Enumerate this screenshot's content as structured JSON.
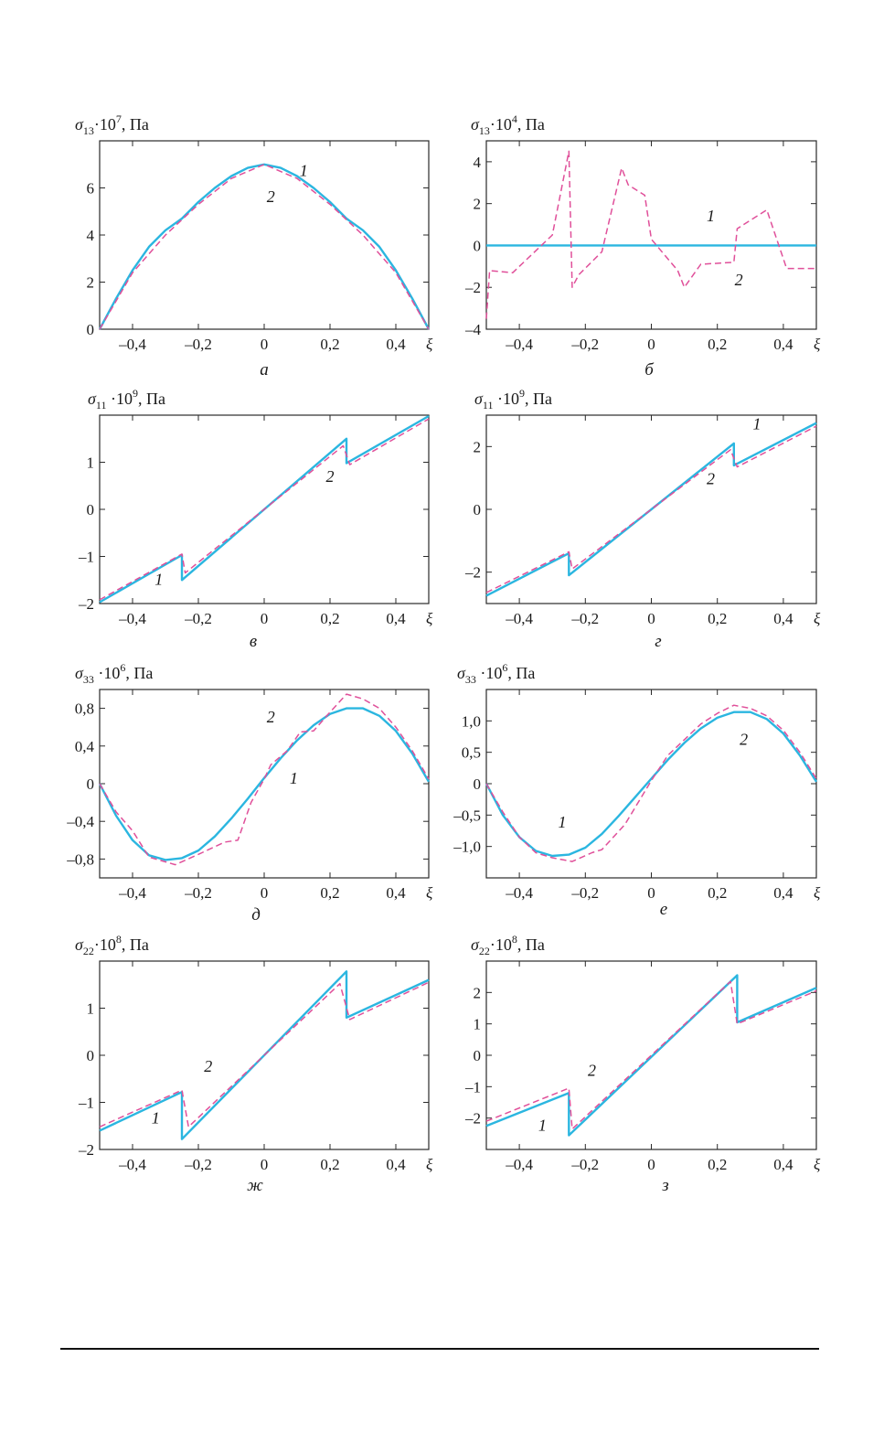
{
  "colors": {
    "series1": "#2bb6e0",
    "series2": "#e0509a",
    "axis": "#2a2a2a"
  },
  "chart_data": [
    {
      "id": "a",
      "type": "line",
      "caption": "а",
      "ylabel": {
        "sym": "σ",
        "sub": "13",
        "pow": "·10",
        "exp": "7",
        "unit": ", Па"
      },
      "xlabel": "ξ",
      "xlim": [
        -0.5,
        0.5
      ],
      "ylim": [
        0,
        8
      ],
      "xticks": [
        -0.4,
        -0.2,
        0,
        0.2,
        0.4
      ],
      "xtick_labels": [
        "–0,4",
        "–0,2",
        "0",
        "0,2",
        "0,4"
      ],
      "yticks": [
        0,
        2,
        4,
        6
      ],
      "ytick_labels": [
        "0",
        "2",
        "4",
        "6"
      ],
      "series": [
        {
          "name": "1",
          "x": [
            -0.5,
            -0.45,
            -0.4,
            -0.35,
            -0.3,
            -0.25,
            -0.2,
            -0.15,
            -0.1,
            -0.05,
            0,
            0.05,
            0.1,
            0.15,
            0.2,
            0.25,
            0.3,
            0.35,
            0.4,
            0.45,
            0.5
          ],
          "y": [
            0,
            1.3,
            2.5,
            3.5,
            4.2,
            4.7,
            5.4,
            6.0,
            6.5,
            6.85,
            7.0,
            6.85,
            6.5,
            6.0,
            5.4,
            4.7,
            4.2,
            3.5,
            2.5,
            1.3,
            0
          ]
        },
        {
          "name": "2",
          "x": [
            -0.5,
            -0.4,
            -0.3,
            -0.2,
            -0.1,
            0,
            0.1,
            0.2,
            0.3,
            0.4,
            0.5
          ],
          "y": [
            0,
            2.4,
            4.0,
            5.3,
            6.4,
            7.0,
            6.4,
            5.3,
            4.0,
            2.4,
            0
          ]
        }
      ],
      "annotations": [
        {
          "text": "1",
          "x": 0.12,
          "y": 6.5
        },
        {
          "text": "2",
          "x": 0.02,
          "y": 5.4
        }
      ]
    },
    {
      "id": "b",
      "type": "line",
      "caption": "б",
      "ylabel": {
        "sym": "σ",
        "sub": "13",
        "pow": "·10",
        "exp": "4",
        "unit": ", Па"
      },
      "xlabel": "ξ",
      "xlim": [
        -0.5,
        0.5
      ],
      "ylim": [
        -4,
        5
      ],
      "xticks": [
        -0.4,
        -0.2,
        0,
        0.2,
        0.4
      ],
      "xtick_labels": [
        "–0,4",
        "–0,2",
        "0",
        "0,2",
        "0,4"
      ],
      "yticks": [
        -4,
        -2,
        0,
        2,
        4
      ],
      "ytick_labels": [
        "–4",
        "–2",
        "0",
        "2",
        "4"
      ],
      "series": [
        {
          "name": "1",
          "x": [
            -0.5,
            0.5
          ],
          "y": [
            0,
            0
          ]
        },
        {
          "name": "2",
          "x": [
            -0.5,
            -0.49,
            -0.42,
            -0.3,
            -0.25,
            -0.24,
            -0.22,
            -0.15,
            -0.09,
            -0.07,
            -0.02,
            0,
            0.08,
            0.1,
            0.15,
            0.25,
            0.26,
            0.35,
            0.41,
            0.5
          ],
          "y": [
            -3.5,
            -1.2,
            -1.3,
            0.5,
            4.5,
            -2.0,
            -1.4,
            -0.3,
            3.7,
            2.9,
            2.4,
            0.3,
            -1.2,
            -2.0,
            -0.9,
            -0.8,
            0.8,
            1.7,
            -1.1,
            -1.1
          ]
        }
      ],
      "annotations": [
        {
          "text": "1",
          "x": 0.18,
          "y": 1.15
        },
        {
          "text": "2",
          "x": 0.265,
          "y": -1.9
        }
      ]
    },
    {
      "id": "v",
      "type": "line",
      "caption": "в",
      "ylabel": {
        "sym": "σ",
        "sub": "11",
        "pow": " ·10",
        "exp": "9",
        "unit": ", Па"
      },
      "xlabel": "ξ",
      "xlim": [
        -0.5,
        0.5
      ],
      "ylim": [
        -2,
        2
      ],
      "xticks": [
        -0.4,
        -0.2,
        0,
        0.2,
        0.4
      ],
      "xtick_labels": [
        "–0,4",
        "–0,2",
        "0",
        "0,2",
        "0,4"
      ],
      "yticks": [
        -2,
        -1,
        0,
        1
      ],
      "ytick_labels": [
        "–2",
        "–1",
        "0",
        "1"
      ],
      "series": [
        {
          "name": "1",
          "x": [
            -0.5,
            -0.25,
            -0.25,
            0.25,
            0.25,
            0.5
          ],
          "y": [
            -1.97,
            -0.97,
            -1.5,
            1.5,
            0.98,
            1.98
          ]
        },
        {
          "name": "2",
          "x": [
            -0.5,
            -0.25,
            -0.24,
            0.24,
            0.26,
            0.5
          ],
          "y": [
            -1.92,
            -0.95,
            -1.35,
            1.35,
            0.95,
            1.92
          ]
        }
      ],
      "annotations": [
        {
          "text": "1",
          "x": -0.32,
          "y": -1.6
        },
        {
          "text": "2",
          "x": 0.2,
          "y": 0.58
        }
      ]
    },
    {
      "id": "g",
      "type": "line",
      "caption": "г",
      "ylabel": {
        "sym": "σ",
        "sub": "11",
        "pow": " ·10",
        "exp": "9",
        "unit": ", Па"
      },
      "xlabel": "ξ",
      "xlim": [
        -0.5,
        0.5
      ],
      "ylim": [
        -3,
        3
      ],
      "xticks": [
        -0.4,
        -0.2,
        0,
        0.2,
        0.4
      ],
      "xtick_labels": [
        "–0,4",
        "–0,2",
        "0",
        "0,2",
        "0,4"
      ],
      "yticks": [
        -2,
        0,
        2
      ],
      "ytick_labels": [
        "–2",
        "0",
        "2"
      ],
      "series": [
        {
          "name": "1",
          "x": [
            -0.5,
            -0.25,
            -0.25,
            0.25,
            0.25,
            0.5
          ],
          "y": [
            -2.75,
            -1.4,
            -2.1,
            2.1,
            1.4,
            2.75
          ]
        },
        {
          "name": "2",
          "x": [
            -0.5,
            -0.25,
            -0.24,
            0.24,
            0.26,
            0.5
          ],
          "y": [
            -2.65,
            -1.35,
            -1.9,
            1.9,
            1.35,
            2.65
          ]
        }
      ],
      "annotations": [
        {
          "text": "1",
          "x": 0.32,
          "y": 2.55
        },
        {
          "text": "2",
          "x": 0.18,
          "y": 0.8
        }
      ]
    },
    {
      "id": "d",
      "type": "line",
      "caption": "д",
      "ylabel": {
        "sym": "σ",
        "sub": "33",
        "pow": " ·10",
        "exp": "6",
        "unit": ", Па"
      },
      "xlabel": "ξ",
      "xlim": [
        -0.5,
        0.5
      ],
      "ylim": [
        -1.0,
        1.0
      ],
      "xticks": [
        -0.4,
        -0.2,
        0,
        0.2,
        0.4
      ],
      "xtick_labels": [
        "–0,4",
        "–0,2",
        "0",
        "0,2",
        "0,4"
      ],
      "yticks": [
        -0.8,
        -0.4,
        0,
        0.4,
        0.8
      ],
      "ytick_labels": [
        "–0,8",
        "–0,4",
        "0",
        "0,4",
        "0,8"
      ],
      "series": [
        {
          "name": "1",
          "x": [
            -0.5,
            -0.45,
            -0.4,
            -0.35,
            -0.3,
            -0.25,
            -0.2,
            -0.15,
            -0.1,
            -0.05,
            0,
            0.05,
            0.1,
            0.15,
            0.2,
            0.25,
            0.3,
            0.35,
            0.4,
            0.45,
            0.5
          ],
          "y": [
            0,
            -0.34,
            -0.6,
            -0.76,
            -0.81,
            -0.79,
            -0.71,
            -0.56,
            -0.37,
            -0.16,
            0.06,
            0.27,
            0.46,
            0.62,
            0.74,
            0.8,
            0.8,
            0.72,
            0.56,
            0.32,
            0.02
          ]
        },
        {
          "name": "2",
          "x": [
            -0.5,
            -0.45,
            -0.4,
            -0.35,
            -0.3,
            -0.27,
            -0.2,
            -0.12,
            -0.08,
            -0.04,
            0,
            0.02,
            0.07,
            0.11,
            0.15,
            0.19,
            0.25,
            0.3,
            0.35,
            0.4,
            0.45,
            0.5
          ],
          "y": [
            0,
            -0.3,
            -0.5,
            -0.78,
            -0.83,
            -0.86,
            -0.75,
            -0.62,
            -0.6,
            -0.2,
            0.05,
            0.2,
            0.35,
            0.55,
            0.56,
            0.72,
            0.95,
            0.9,
            0.8,
            0.6,
            0.35,
            0.05
          ]
        }
      ],
      "annotations": [
        {
          "text": "2",
          "x": 0.02,
          "y": 0.65
        },
        {
          "text": "1",
          "x": 0.09,
          "y": 0.0
        }
      ]
    },
    {
      "id": "e",
      "type": "line",
      "caption": "е",
      "ylabel": {
        "sym": "σ",
        "sub": "33",
        "pow": " ·10",
        "exp": "6",
        "unit": ", Па"
      },
      "xlabel": "ξ",
      "xlim": [
        -0.5,
        0.5
      ],
      "ylim": [
        -1.5,
        1.5
      ],
      "xticks": [
        -0.4,
        -0.2,
        0,
        0.2,
        0.4
      ],
      "xtick_labels": [
        "–0,4",
        "–0,2",
        "0",
        "0,2",
        "0,4"
      ],
      "yticks": [
        -1.0,
        -0.5,
        0,
        0.5,
        1.0
      ],
      "ytick_labels": [
        "–1,0",
        "–0,5",
        "0",
        "0,5",
        "1,0"
      ],
      "series": [
        {
          "name": "1",
          "x": [
            -0.5,
            -0.45,
            -0.4,
            -0.35,
            -0.3,
            -0.25,
            -0.2,
            -0.15,
            -0.1,
            -0.05,
            0,
            0.05,
            0.1,
            0.15,
            0.2,
            0.25,
            0.3,
            0.35,
            0.4,
            0.45,
            0.5
          ],
          "y": [
            0,
            -0.5,
            -0.85,
            -1.07,
            -1.15,
            -1.13,
            -1.02,
            -0.8,
            -0.52,
            -0.22,
            0.08,
            0.38,
            0.65,
            0.88,
            1.05,
            1.14,
            1.14,
            1.03,
            0.8,
            0.45,
            0.03
          ]
        },
        {
          "name": "2",
          "x": [
            -0.5,
            -0.45,
            -0.4,
            -0.35,
            -0.3,
            -0.24,
            -0.18,
            -0.15,
            -0.08,
            0,
            0.05,
            0.1,
            0.15,
            0.2,
            0.25,
            0.3,
            0.35,
            0.4,
            0.45,
            0.5
          ],
          "y": [
            0,
            -0.45,
            -0.85,
            -1.1,
            -1.18,
            -1.24,
            -1.1,
            -1.05,
            -0.65,
            0.05,
            0.45,
            0.7,
            0.95,
            1.12,
            1.25,
            1.2,
            1.08,
            0.85,
            0.5,
            0.08
          ]
        }
      ],
      "annotations": [
        {
          "text": "1",
          "x": -0.27,
          "y": -0.7
        },
        {
          "text": "2",
          "x": 0.28,
          "y": 0.62
        }
      ]
    },
    {
      "id": "zh",
      "type": "line",
      "caption": "ж",
      "ylabel": {
        "sym": "σ",
        "sub": "22",
        "pow": "·10",
        "exp": "8",
        "unit": ", Па"
      },
      "xlabel": "ξ",
      "xlim": [
        -0.5,
        0.5
      ],
      "ylim": [
        -2,
        2
      ],
      "xticks": [
        -0.4,
        -0.2,
        0,
        0.2,
        0.4
      ],
      "xtick_labels": [
        "–0,4",
        "–0,2",
        "0",
        "0,2",
        "0,4"
      ],
      "yticks": [
        -2,
        -1,
        0,
        1
      ],
      "ytick_labels": [
        "–2",
        "–1",
        "0",
        "1"
      ],
      "series": [
        {
          "name": "1",
          "x": [
            -0.5,
            -0.25,
            -0.25,
            0.25,
            0.25,
            0.5
          ],
          "y": [
            -1.6,
            -0.78,
            -1.78,
            1.78,
            0.8,
            1.6
          ]
        },
        {
          "name": "2",
          "x": [
            -0.5,
            -0.25,
            -0.23,
            0.23,
            0.26,
            0.5
          ],
          "y": [
            -1.52,
            -0.74,
            -1.52,
            1.52,
            0.76,
            1.55
          ]
        }
      ],
      "annotations": [
        {
          "text": "2",
          "x": -0.17,
          "y": -0.35
        },
        {
          "text": "1",
          "x": -0.33,
          "y": -1.45
        }
      ]
    },
    {
      "id": "z",
      "type": "line",
      "caption": "з",
      "ylabel": {
        "sym": "σ",
        "sub": "22",
        "pow": "·10",
        "exp": "8",
        "unit": ", Па"
      },
      "xlabel": "ξ",
      "xlim": [
        -0.5,
        0.5
      ],
      "ylim": [
        -3,
        3
      ],
      "xticks": [
        -0.4,
        -0.2,
        0,
        0.2,
        0.4
      ],
      "xtick_labels": [
        "–0,4",
        "–0,2",
        "0",
        "0,2",
        "0,4"
      ],
      "yticks": [
        -2,
        -1,
        0,
        1,
        2
      ],
      "ytick_labels": [
        "–2",
        "–1",
        "0",
        "1",
        "2"
      ],
      "series": [
        {
          "name": "1",
          "x": [
            -0.5,
            -0.25,
            -0.25,
            0.26,
            0.26,
            0.5
          ],
          "y": [
            -2.25,
            -1.2,
            -2.55,
            2.55,
            1.05,
            2.15
          ]
        },
        {
          "name": "2",
          "x": [
            -0.5,
            -0.25,
            -0.24,
            0.24,
            0.26,
            0.5
          ],
          "y": [
            -2.1,
            -1.05,
            -2.35,
            2.35,
            1.0,
            2.05
          ]
        }
      ],
      "annotations": [
        {
          "text": "2",
          "x": -0.18,
          "y": -0.65
        },
        {
          "text": "1",
          "x": -0.33,
          "y": -2.4
        }
      ]
    }
  ]
}
